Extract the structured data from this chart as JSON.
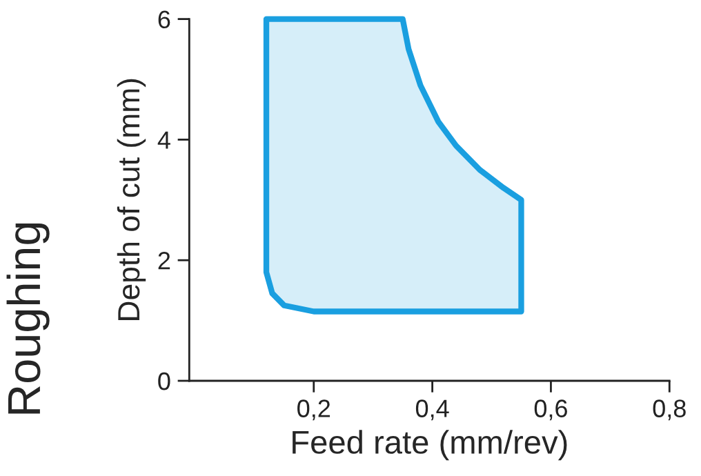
{
  "chart_data": {
    "type": "area",
    "xlabel": "Feed rate (mm/rev)",
    "ylabel": "Depth of cut (mm)",
    "annotations": [
      "Roughing"
    ],
    "series": [
      {
        "color": "#1a9fe0",
        "x": [
          0.12,
          0.35,
          0.36,
          0.38,
          0.41,
          0.44,
          0.48,
          0.52,
          0.55,
          0.55,
          0.2,
          0.15,
          0.13,
          0.12,
          0.12
        ],
        "values": [
          6,
          6,
          5.5,
          4.9,
          4.3,
          3.9,
          3.5,
          3.2,
          3.0,
          1.15,
          1.15,
          1.25,
          1.45,
          1.8,
          6
        ]
      }
    ],
    "xlim": [
      -0.01,
      0.8
    ],
    "ylim": [
      0,
      6
    ],
    "xticks": [
      {
        "value": 0.2,
        "label": "0,2"
      },
      {
        "value": 0.4,
        "label": "0,4"
      },
      {
        "value": 0.6,
        "label": "0,6"
      },
      {
        "value": 0.8,
        "label": "0,8"
      }
    ],
    "yticks": [
      0,
      2,
      4,
      6
    ],
    "grid": false
  }
}
